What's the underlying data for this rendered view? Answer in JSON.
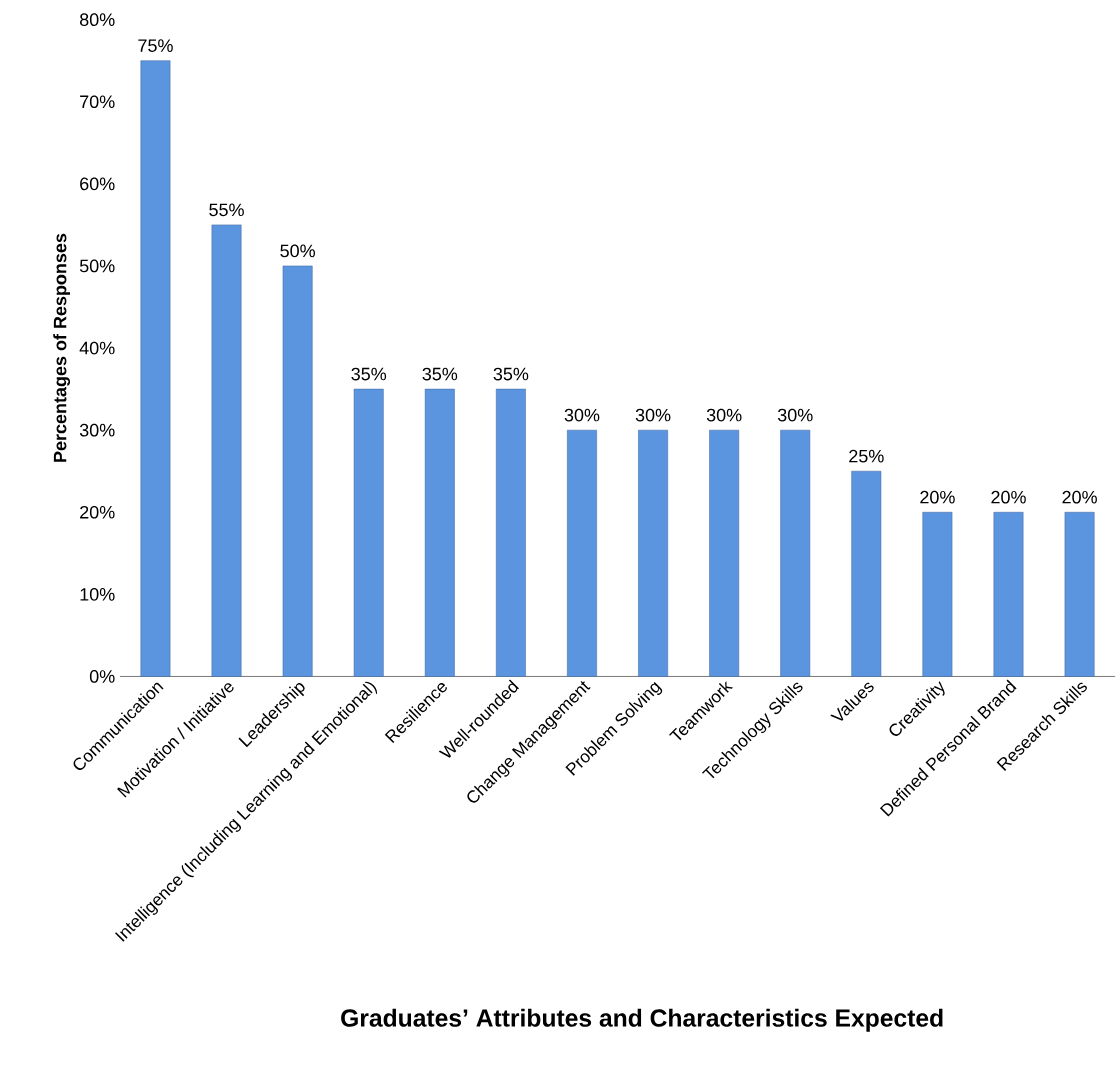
{
  "chart_data": {
    "type": "bar",
    "title": "Graduates’ Attributes and Characteristics Expected",
    "ylabel": "Percentages of Responses",
    "categories": [
      "Communication",
      "Motivation / Initiative",
      "Leadership",
      "Intelligence (Including Learning and Emotional)",
      "Resilience",
      "Well-rounded",
      "Change Management",
      "Problem Solving",
      "Teamwork",
      "Technology Skills",
      "Values",
      "Creativity",
      "Defined Personal Brand",
      "Research Skills"
    ],
    "values": [
      75,
      55,
      50,
      35,
      35,
      35,
      30,
      30,
      30,
      30,
      25,
      20,
      20,
      20
    ],
    "value_labels": [
      "75%",
      "55%",
      "50%",
      "35%",
      "35%",
      "35%",
      "30%",
      "30%",
      "30%",
      "30%",
      "25%",
      "20%",
      "20%",
      "20%"
    ],
    "color": "#5b95e0",
    "ylim": [
      0,
      80
    ],
    "yticks": [
      {
        "value": 0,
        "label": "0%"
      },
      {
        "value": 10,
        "label": "10%"
      },
      {
        "value": 20,
        "label": "20%"
      },
      {
        "value": 30,
        "label": "30%"
      },
      {
        "value": 40,
        "label": "40%"
      },
      {
        "value": 50,
        "label": "50%"
      },
      {
        "value": 60,
        "label": "60%"
      },
      {
        "value": 70,
        "label": "70%"
      },
      {
        "value": 80,
        "label": "80%"
      }
    ],
    "grid": false
  }
}
